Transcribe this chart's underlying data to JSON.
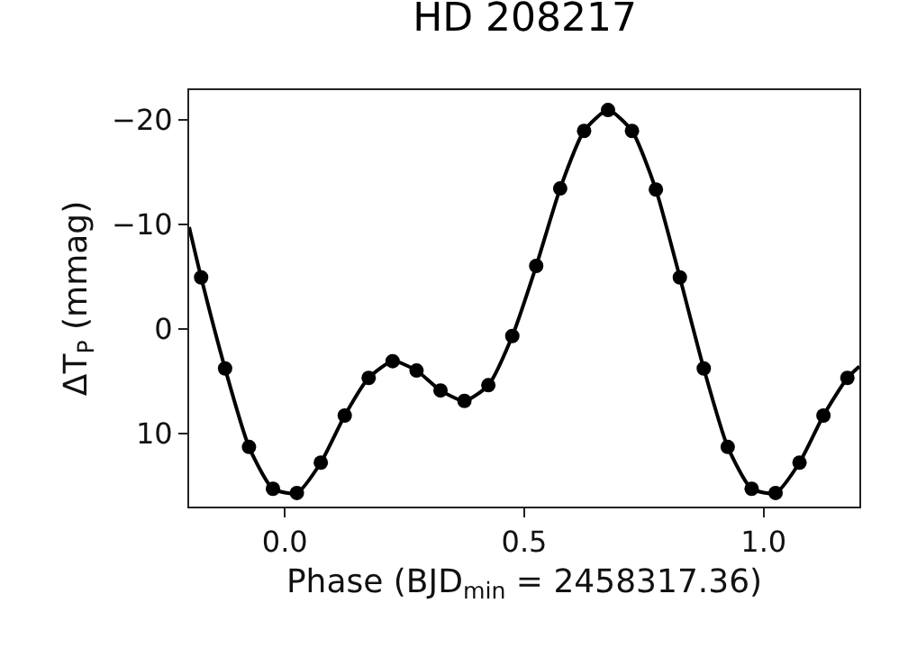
{
  "chart_data": {
    "type": "line",
    "title": "HD 208217",
    "xlabel": "Phase (BJD$_{min}$ = 2458317.36)",
    "ylabel": "ΔT$_{P}$ (mmag)",
    "xlim": [
      -0.2,
      1.2
    ],
    "xticks": [
      {
        "value": 0,
        "label": "0.0"
      },
      {
        "value": 0.5,
        "label": "0.5"
      },
      {
        "value": 1,
        "label": "1.0"
      }
    ],
    "ylim": [
      17,
      -22.8
    ],
    "yticks": [
      -20,
      -10,
      0,
      10
    ],
    "grid": false,
    "series": [
      {
        "color": "#000000",
        "marker": "none",
        "line_style": "solid",
        "x": [
          -0.2,
          -0.175,
          -0.125,
          -0.075,
          -0.025,
          0.025,
          0.075,
          0.125,
          0.175,
          0.225,
          0.275,
          0.325,
          0.375,
          0.425,
          0.475,
          0.525,
          0.575,
          0.625,
          0.675,
          0.725,
          0.775,
          0.825,
          0.875,
          0.925,
          0.975,
          1.025,
          1.075,
          1.125,
          1.175,
          1.2
        ],
        "values": [
          -9.7,
          -4.9,
          3.8,
          11.3,
          15.3,
          15.7,
          12.8,
          8.3,
          4.7,
          3.1,
          4.0,
          5.9,
          6.9,
          5.4,
          0.7,
          -6.0,
          -13.4,
          -18.9,
          -20.9,
          -18.9,
          -13.3,
          -4.9,
          3.8,
          11.3,
          15.3,
          15.7,
          12.8,
          8.3,
          4.7,
          3.6
        ]
      },
      {
        "type": "scatter",
        "color": "#000000",
        "marker": "circle",
        "x": [
          -0.175,
          -0.125,
          -0.075,
          -0.025,
          0.025,
          0.075,
          0.125,
          0.175,
          0.225,
          0.275,
          0.325,
          0.375,
          0.425,
          0.475,
          0.525,
          0.575,
          0.625,
          0.675,
          0.725,
          0.775,
          0.825,
          0.875,
          0.925,
          0.975,
          1.025,
          1.075,
          1.125,
          1.175
        ],
        "values": [
          -4.9,
          3.8,
          11.3,
          15.3,
          15.7,
          12.8,
          8.3,
          4.7,
          3.1,
          4.0,
          5.9,
          6.9,
          5.4,
          0.7,
          -6.0,
          -13.4,
          -18.9,
          -20.9,
          -18.9,
          -13.3,
          -4.9,
          3.8,
          11.3,
          15.3,
          15.7,
          12.8,
          8.3,
          4.7
        ]
      }
    ]
  }
}
